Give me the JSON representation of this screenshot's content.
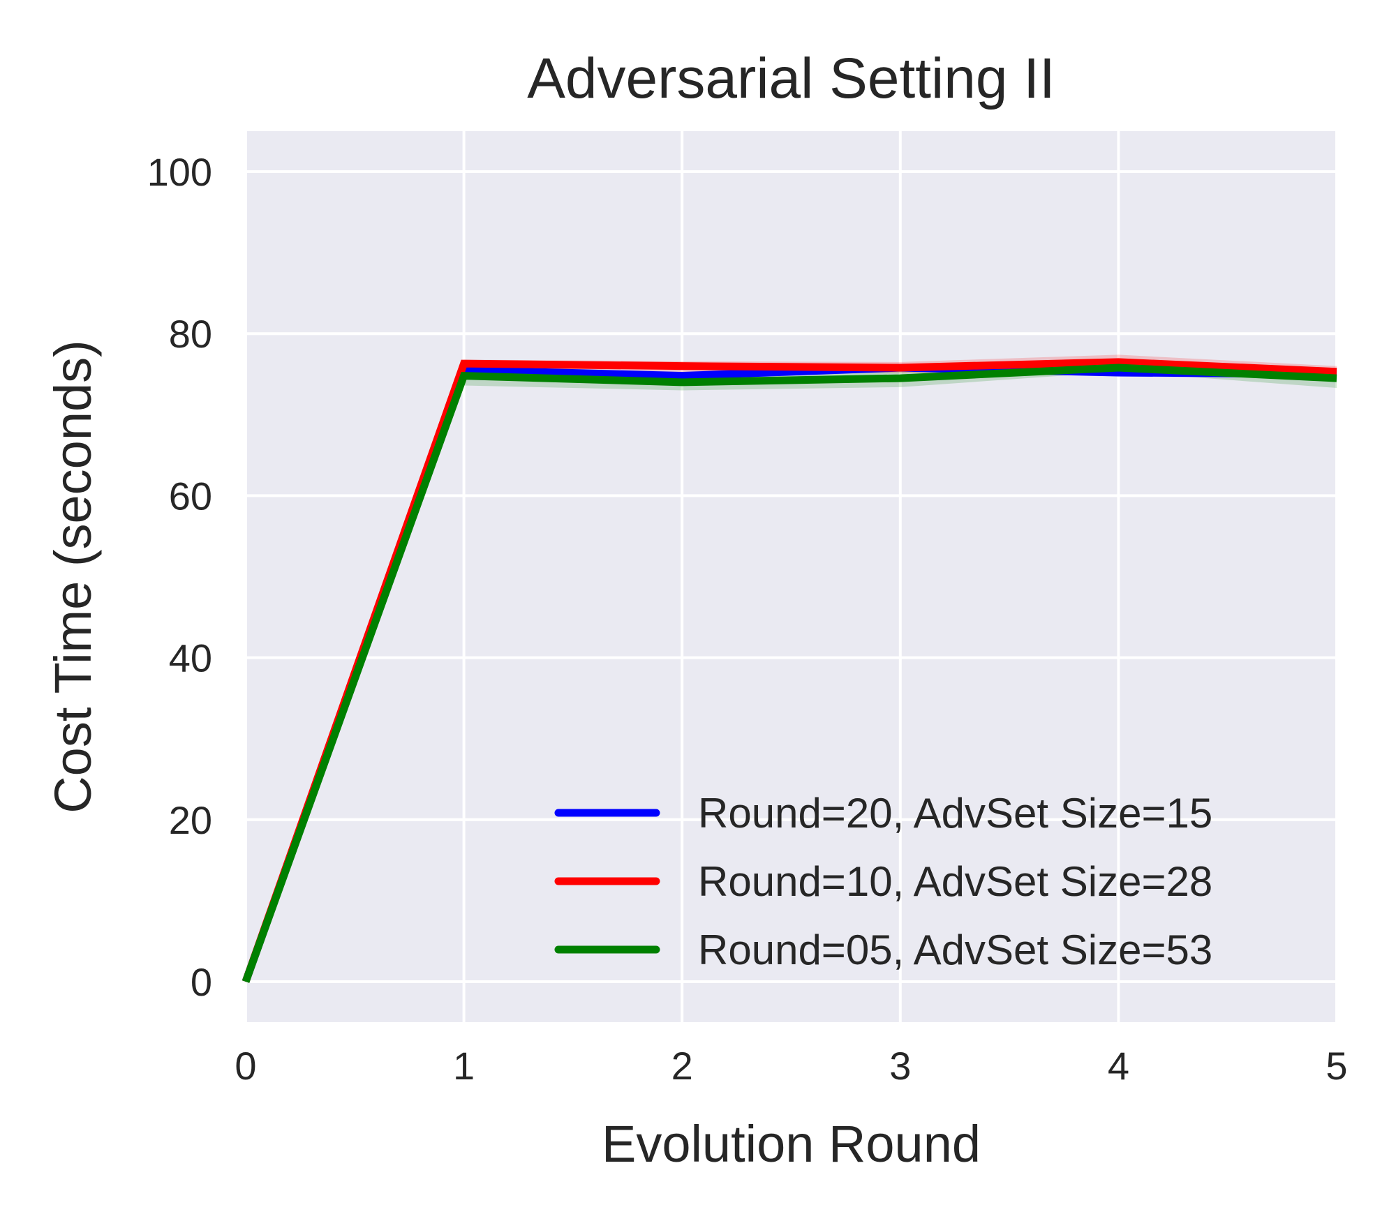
{
  "chart_data": {
    "type": "line",
    "title": "Adversarial Setting II",
    "xlabel": "Evolution Round",
    "ylabel": "Cost Time (seconds)",
    "x": [
      0,
      1,
      2,
      3,
      4,
      5
    ],
    "xlim": [
      0,
      5
    ],
    "ylim": [
      -5,
      105
    ],
    "xticks": [
      "0",
      "1",
      "2",
      "3",
      "4",
      "5"
    ],
    "yticks": [
      "0",
      "20",
      "40",
      "60",
      "80",
      "100"
    ],
    "grid": true,
    "legend_position": "lower-right",
    "background_color": "#eaeaf2",
    "series": [
      {
        "name": "Round=20, AdvSet Size=15",
        "color": "#0000ff",
        "values": [
          0,
          75.5,
          74.8,
          75.8,
          75.2,
          75.0
        ],
        "lower": [
          0,
          75.0,
          74.3,
          75.3,
          74.7,
          74.5
        ],
        "upper": [
          0,
          76.0,
          75.3,
          76.3,
          75.7,
          75.8
        ]
      },
      {
        "name": "Round=10, AdvSet Size=28",
        "color": "#ff0000",
        "values": [
          0,
          76.3,
          76.0,
          75.8,
          76.5,
          75.3
        ],
        "lower": [
          0,
          75.8,
          75.3,
          75.1,
          75.6,
          74.7
        ],
        "upper": [
          0,
          76.8,
          76.6,
          76.5,
          77.4,
          76.0
        ]
      },
      {
        "name": "Round=05, AdvSet Size=53",
        "color": "#008000",
        "values": [
          0,
          74.8,
          74.0,
          74.5,
          75.8,
          74.5
        ],
        "lower": [
          0,
          73.6,
          73.0,
          73.4,
          75.3,
          73.3
        ],
        "upper": [
          0,
          75.8,
          75.0,
          75.5,
          76.3,
          75.3
        ]
      }
    ]
  }
}
